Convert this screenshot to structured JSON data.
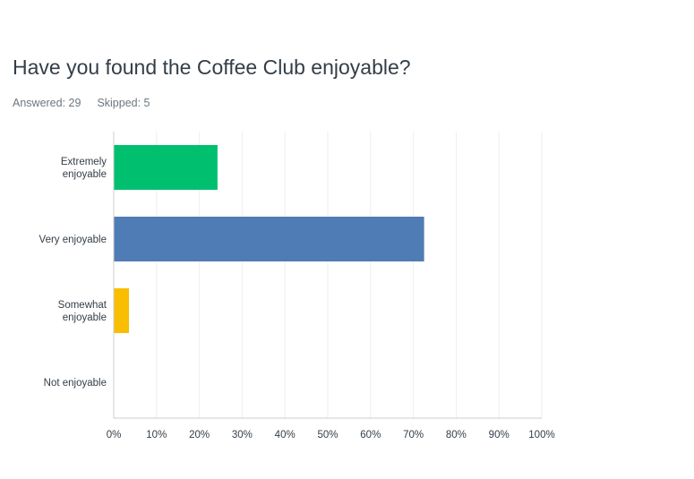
{
  "question": {
    "title": "Have you found the Coffee Club enjoyable?",
    "answered_label": "Answered: 29",
    "skipped_label": "Skipped: 5"
  },
  "colors": {
    "grid": "#eeeeee",
    "axis": "#cccccc",
    "bars": [
      "#00bf6f",
      "#507cb6",
      "#f9be00",
      "#6bc8cd"
    ]
  },
  "chart_data": {
    "type": "bar",
    "orientation": "horizontal",
    "categories": [
      [
        "Extremely",
        "enjoyable"
      ],
      [
        "Very enjoyable"
      ],
      [
        "Somewhat",
        "enjoyable"
      ],
      [
        "Not enjoyable"
      ]
    ],
    "values": [
      24.14,
      72.41,
      3.45,
      0
    ],
    "unit": "%",
    "xlim": [
      0,
      100
    ],
    "xticks": [
      "0%",
      "10%",
      "20%",
      "30%",
      "40%",
      "50%",
      "60%",
      "70%",
      "80%",
      "90%",
      "100%"
    ],
    "grid": true
  }
}
